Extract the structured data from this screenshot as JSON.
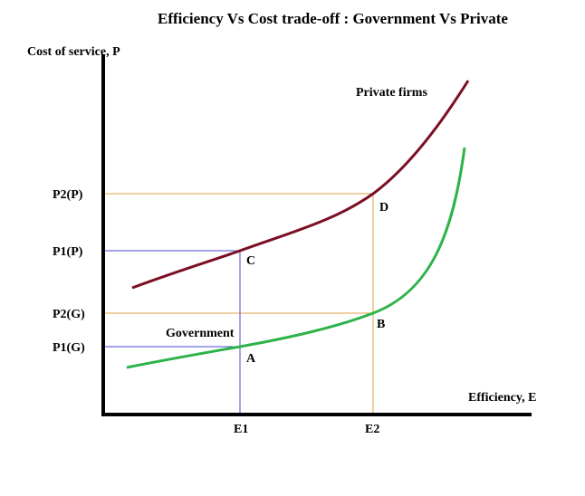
{
  "title": "Efficiency Vs Cost trade-off : Government Vs Private",
  "axes": {
    "y_label": "Cost of service, P",
    "x_label": "Efficiency, E"
  },
  "x_ticks": [
    "E1",
    "E2"
  ],
  "y_ticks": [
    "P2(P)",
    "P1(P)",
    "P2(G)",
    "P1(G)"
  ],
  "points": [
    "D",
    "C",
    "B",
    "A"
  ],
  "curves": {
    "private_label": "Private firms",
    "government_label": "Government"
  },
  "colors": {
    "private_curve": "#7b0f24",
    "government_curve": "#2db34a",
    "guide_orange": "#e0a040",
    "guide_blue": "#4a4ad0",
    "axis": "#000000"
  }
}
